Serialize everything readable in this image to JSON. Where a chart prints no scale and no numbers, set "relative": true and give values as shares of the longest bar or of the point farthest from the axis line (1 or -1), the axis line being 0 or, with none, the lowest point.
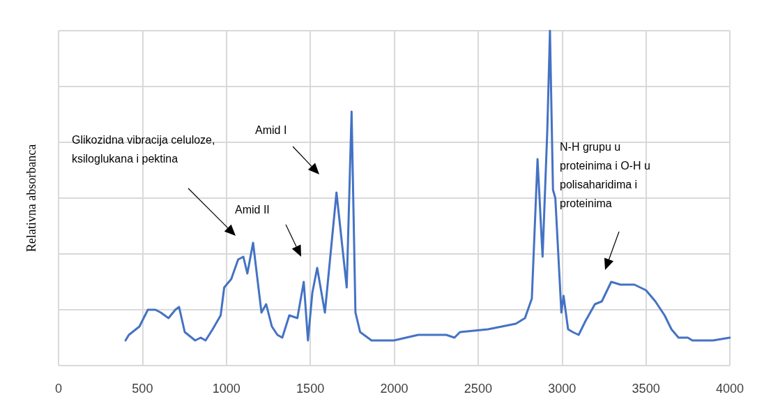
{
  "chart_data": {
    "type": "line",
    "ylabel": "Relativna absorbanca",
    "relative": true,
    "grid": true,
    "xlim": [
      0,
      4000
    ],
    "xticks": [
      0,
      500,
      1000,
      1500,
      2000,
      2500,
      3000,
      3500,
      4000
    ],
    "x": [
      399,
      419,
      482,
      532,
      577,
      609,
      655,
      696,
      718,
      752,
      814,
      847,
      876,
      918,
      966,
      987,
      1029,
      1070,
      1101,
      1125,
      1159,
      1209,
      1237,
      1271,
      1304,
      1333,
      1375,
      1423,
      1461,
      1486,
      1512,
      1541,
      1587,
      1656,
      1717,
      1746,
      1769,
      1797,
      1865,
      1998,
      2143,
      2310,
      2359,
      2392,
      2559,
      2725,
      2779,
      2820,
      2854,
      2884,
      2912,
      2928,
      2946,
      2960,
      2996,
      3009,
      3036,
      3064,
      3099,
      3140,
      3196,
      3237,
      3293,
      3348,
      3431,
      3500,
      3556,
      3611,
      3652,
      3694,
      3749,
      3777,
      3900,
      3999
    ],
    "series": [
      {
        "color": "#4472c4",
        "values": [
          -0.11,
          -0.09,
          -0.06,
          0.0,
          0.0,
          -0.01,
          -0.03,
          0.0,
          0.01,
          -0.08,
          -0.11,
          -0.1,
          -0.11,
          -0.07,
          -0.02,
          0.08,
          0.11,
          0.18,
          0.19,
          0.13,
          0.24,
          -0.01,
          0.02,
          -0.06,
          -0.09,
          -0.1,
          -0.02,
          -0.03,
          0.1,
          -0.11,
          0.06,
          0.15,
          -0.01,
          0.42,
          0.08,
          0.71,
          -0.01,
          -0.08,
          -0.11,
          -0.11,
          -0.09,
          -0.09,
          -0.1,
          -0.08,
          -0.07,
          -0.05,
          -0.03,
          0.04,
          0.54,
          0.19,
          0.64,
          1.0,
          0.43,
          0.4,
          -0.01,
          0.05,
          -0.07,
          -0.08,
          -0.09,
          -0.04,
          0.02,
          0.03,
          0.1,
          0.09,
          0.09,
          0.07,
          0.03,
          -0.02,
          -0.07,
          -0.1,
          -0.1,
          -0.11,
          -0.11,
          -0.1
        ]
      }
    ],
    "annotations": [
      "Glikozidna vibracija celuloze, ksiloglukana i pektina",
      "Amid II",
      "Amid I",
      "N-H grupu u proteinima i O-H u polisaharidima i proteinima"
    ]
  }
}
